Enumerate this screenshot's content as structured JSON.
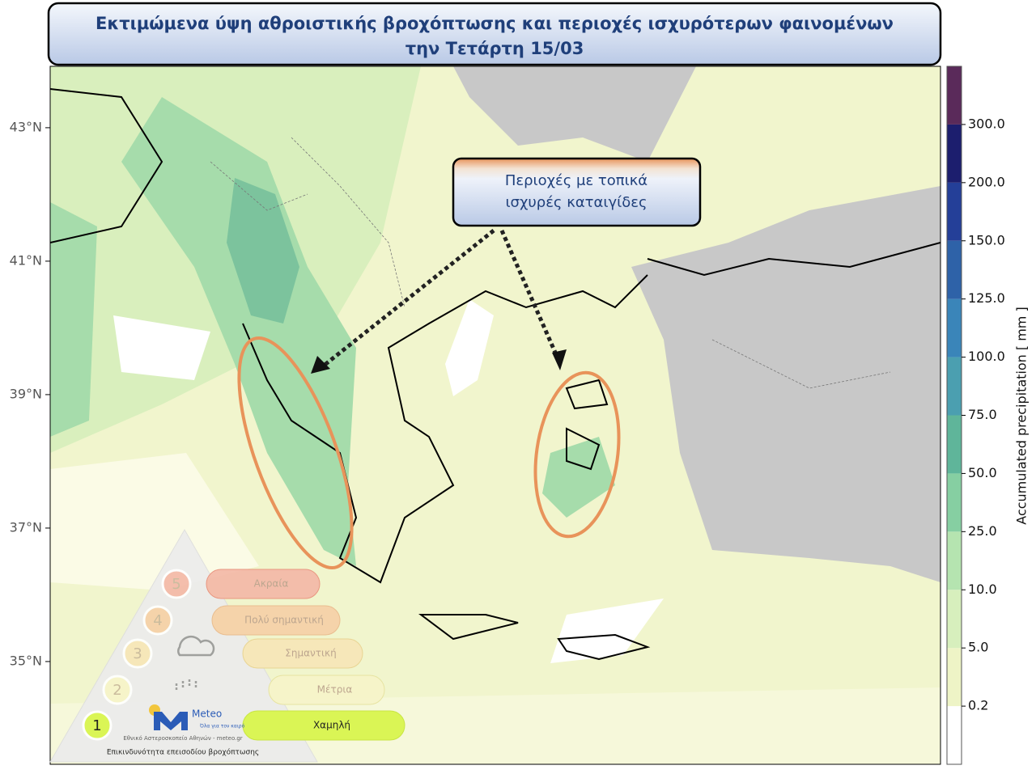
{
  "title": {
    "line1": "Εκτιμώμενα ύψη αθροιστικής βροχόπτωσης και περιοχές ισχυρότερων φαινομένων",
    "line2": "την Τετάρτη 15/03"
  },
  "callout": {
    "line1": "Περιοχές με τοπικά",
    "line2": "ισχυρές καταιγίδες"
  },
  "map": {
    "ylim": [
      33.46,
      43.92
    ],
    "yticks": [
      {
        "value": 43,
        "label": "43°N"
      },
      {
        "value": 41,
        "label": "41°N"
      },
      {
        "value": 39,
        "label": "39°N"
      },
      {
        "value": 37,
        "label": "37°N"
      },
      {
        "value": 35,
        "label": "35°N"
      }
    ]
  },
  "colorbar": {
    "label": "Accumulated precipitation [ mm ]",
    "ticks": [
      {
        "value": 0.2,
        "label": "0.2"
      },
      {
        "value": 5,
        "label": "5.0"
      },
      {
        "value": 10,
        "label": "10.0"
      },
      {
        "value": 25,
        "label": "25.0"
      },
      {
        "value": 50,
        "label": "50.0"
      },
      {
        "value": 75,
        "label": "75.0"
      },
      {
        "value": 100,
        "label": "100.0"
      },
      {
        "value": 125,
        "label": "125.0"
      },
      {
        "value": 150,
        "label": "150.0"
      },
      {
        "value": 200,
        "label": "200.0"
      },
      {
        "value": 300,
        "label": "300.0"
      }
    ],
    "colors": [
      "#ffffff",
      "#eef4c6",
      "#d7efbd",
      "#b5e4b0",
      "#86cfa2",
      "#5fb59a",
      "#4b9fb0",
      "#3a85b9",
      "#2e62a8",
      "#243f98",
      "#1c1e6e",
      "#5a2a5a"
    ]
  },
  "risk": {
    "levels": [
      {
        "number": 5,
        "label": "Ακραία"
      },
      {
        "number": 4,
        "label": "Πολύ σημαντική"
      },
      {
        "number": 3,
        "label": "Σημαντική"
      },
      {
        "number": 2,
        "label": "Μέτρια"
      },
      {
        "number": 1,
        "label": "Χαμηλή"
      }
    ],
    "caption": "Επικινδυνότητα επεισοδίου βροχόπτωσης"
  },
  "logo": {
    "name": "Meteo",
    "slogan": "Όλα για τον καιρό",
    "org": "Εθνικό Αστεροσκοπείο Αθηνών - meteo.gr"
  }
}
